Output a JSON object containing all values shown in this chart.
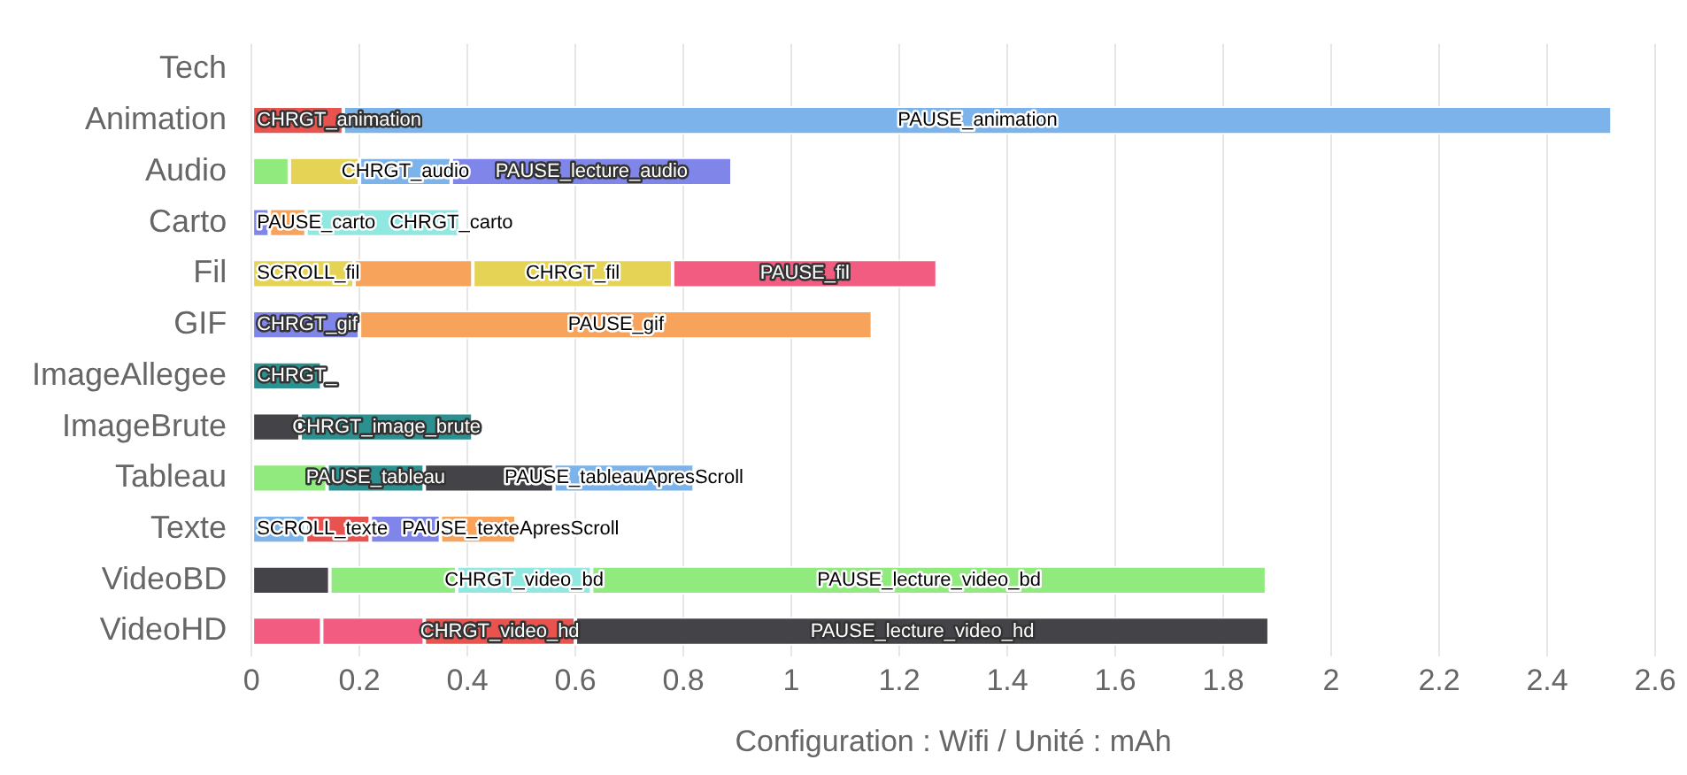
{
  "chart_data": {
    "type": "bar",
    "orientation": "horizontal",
    "stacked": true,
    "xlabel": "Configuration : Wifi / Unité : mAh",
    "xlim": [
      0,
      2.6
    ],
    "xticks": [
      0,
      0.2,
      0.4,
      0.6,
      0.8,
      1,
      1.2,
      1.4,
      1.6,
      1.8,
      2,
      2.2,
      2.4,
      2.6
    ],
    "grid": "x",
    "legend": false,
    "categories": [
      "Tech",
      "Animation",
      "Audio",
      "Carto",
      "Fil",
      "GIF",
      "ImageAllegee",
      "ImageBrute",
      "Tableau",
      "Texte",
      "VideoBD",
      "VideoHD"
    ],
    "series": [
      {
        "values": [
          null,
          0.17,
          0.07,
          0.033,
          0.19,
          0.2,
          0.13,
          0.09,
          0.14,
          0.1,
          0.145,
          0.13
        ],
        "colors": [
          null,
          "#e8534f",
          "#90ea7e",
          "#8085e9",
          "#e4d354",
          "#8085e9",
          "#2b908f",
          "#434348",
          "#90ea7e",
          "#7bb3ea",
          "#434348",
          "#f15c80"
        ],
        "value_labels": [
          null,
          "CHRGT_animation",
          null,
          null,
          "SCROLL_fil",
          "CHRGT_gif",
          "CHRGT_",
          null,
          null,
          "SCROLL_texte",
          null,
          null
        ]
      },
      {
        "values": [
          null,
          2.35,
          0.13,
          0.068,
          0.22,
          0.95,
          null,
          0.32,
          0.18,
          0.12,
          0.235,
          0.19
        ],
        "colors": [
          null,
          "#7bb3ea",
          "#e4d354",
          "#f7a35c",
          "#f7a35c",
          "#f7a35c",
          null,
          "#2b908f",
          "#2b908f",
          "#e8534f",
          "#90ea7e",
          "#f15c80"
        ],
        "value_labels": [
          null,
          "PAUSE_animation",
          null,
          "PAUSE_carto",
          null,
          "PAUSE_gif",
          null,
          "CHRGT_image_brute",
          "PAUSE_tableau",
          null,
          null,
          null
        ]
      },
      {
        "values": [
          null,
          null,
          0.17,
          0.285,
          0.37,
          null,
          null,
          null,
          0.24,
          0.13,
          0.25,
          0.28
        ],
        "colors": [
          null,
          null,
          "#7bb3ea",
          "#91e8e1",
          "#e4d354",
          null,
          null,
          null,
          "#434348",
          "#8085e9",
          "#91e8e1",
          "#e8534f"
        ],
        "value_labels": [
          null,
          null,
          "CHRGT_audio",
          "CHRGT_carto",
          "CHRGT_fil",
          null,
          null,
          null,
          null,
          null,
          "CHRGT_video_bd",
          "CHRGT_video_hd"
        ]
      },
      {
        "values": [
          null,
          null,
          0.52,
          null,
          0.49,
          null,
          null,
          null,
          0.26,
          0.14,
          1.25,
          1.285
        ],
        "colors": [
          null,
          null,
          "#8085e9",
          null,
          "#f15c80",
          null,
          null,
          null,
          "#7bb3ea",
          "#f7a35c",
          "#90ea7e",
          "#434348"
        ],
        "value_labels": [
          null,
          null,
          "PAUSE_lecture_audio",
          null,
          "PAUSE_fil",
          null,
          null,
          null,
          "PAUSE_tableauApresScroll",
          "PAUSE_texteApresScroll",
          "PAUSE_lecture_video_bd",
          "PAUSE_lecture_video_hd"
        ]
      }
    ]
  }
}
